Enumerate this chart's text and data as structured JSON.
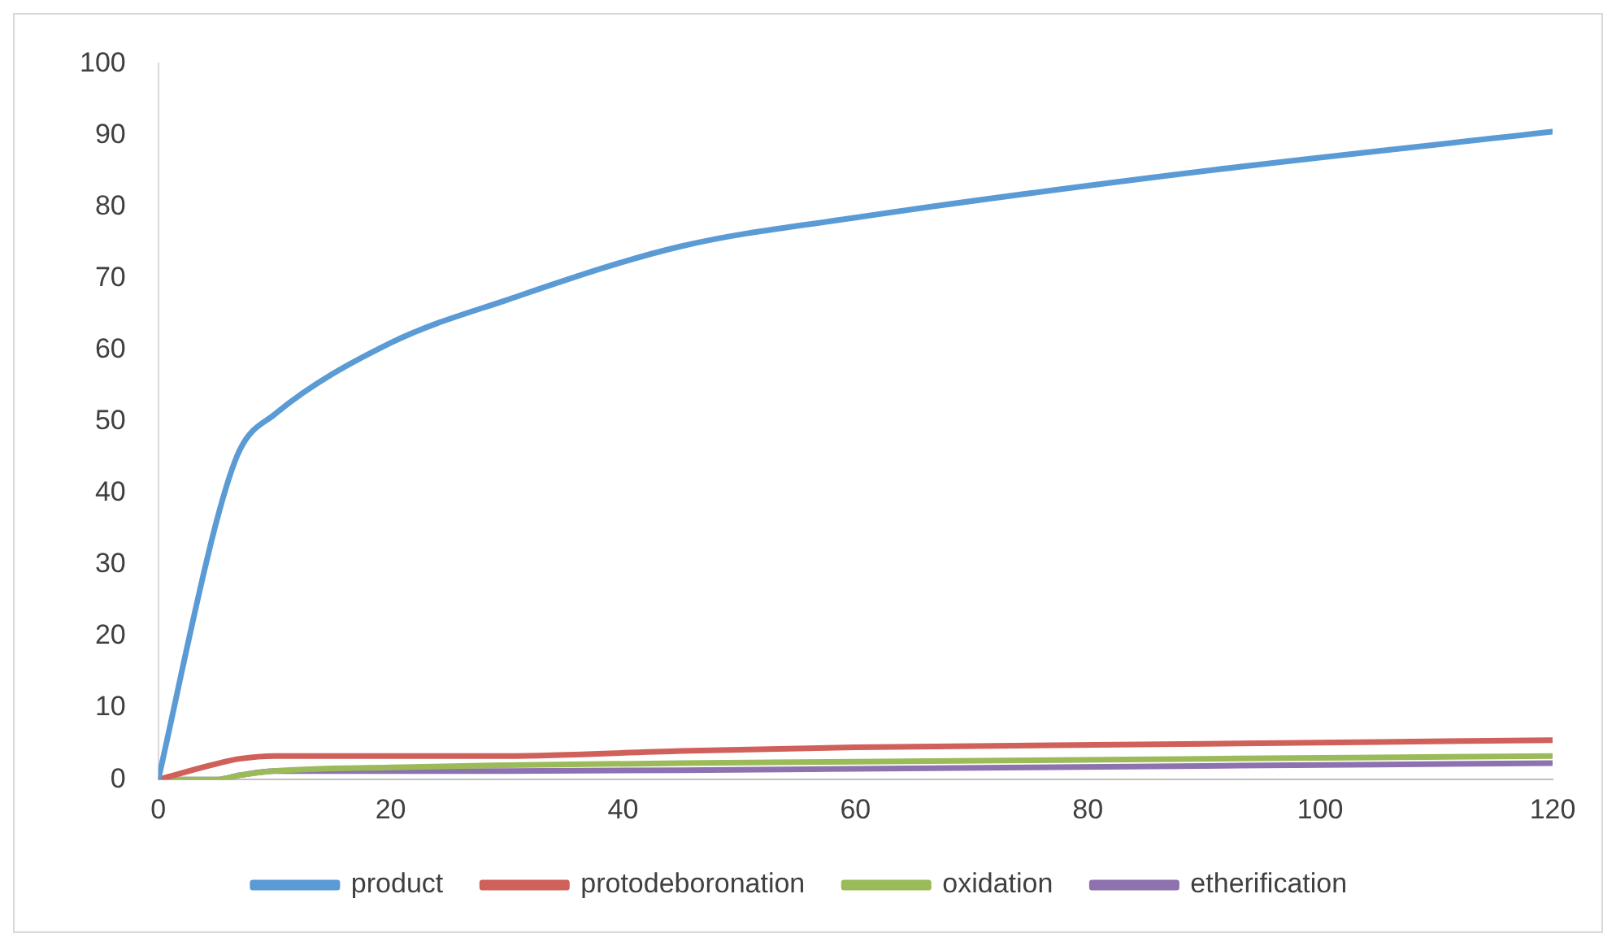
{
  "chart_data": {
    "type": "line",
    "x": [
      0,
      5,
      7,
      10,
      20,
      30,
      45,
      60,
      90,
      120
    ],
    "series": [
      {
        "name": "product",
        "color": "#5b9bd5",
        "values": [
          0,
          36,
          46,
          51,
          61,
          67,
          74.5,
          78.5,
          85,
          90.5
        ]
      },
      {
        "name": "protodeboronation",
        "color": "#d0605a",
        "values": [
          0,
          2.2,
          2.9,
          3.3,
          3.3,
          3.3,
          4,
          4.5,
          5,
          5.5
        ]
      },
      {
        "name": "oxidation",
        "color": "#9bbb59",
        "values": [
          0,
          0,
          0.6,
          1.2,
          1.7,
          2,
          2.3,
          2.5,
          2.9,
          3.3
        ]
      },
      {
        "name": "etherification",
        "color": "#8e72b0",
        "values": [
          0,
          0,
          0.6,
          1.2,
          1.2,
          1.2,
          1.3,
          1.5,
          1.9,
          2.3
        ]
      }
    ],
    "xlim": [
      0,
      120
    ],
    "xticks": [
      0,
      20,
      40,
      60,
      80,
      100,
      120
    ],
    "ylim": [
      0,
      100
    ],
    "yticks": [
      0,
      10,
      20,
      30,
      40,
      50,
      60,
      70,
      80,
      90,
      100
    ],
    "grid": false,
    "legend": "bottom",
    "marker": "none",
    "line_style": "solid"
  }
}
